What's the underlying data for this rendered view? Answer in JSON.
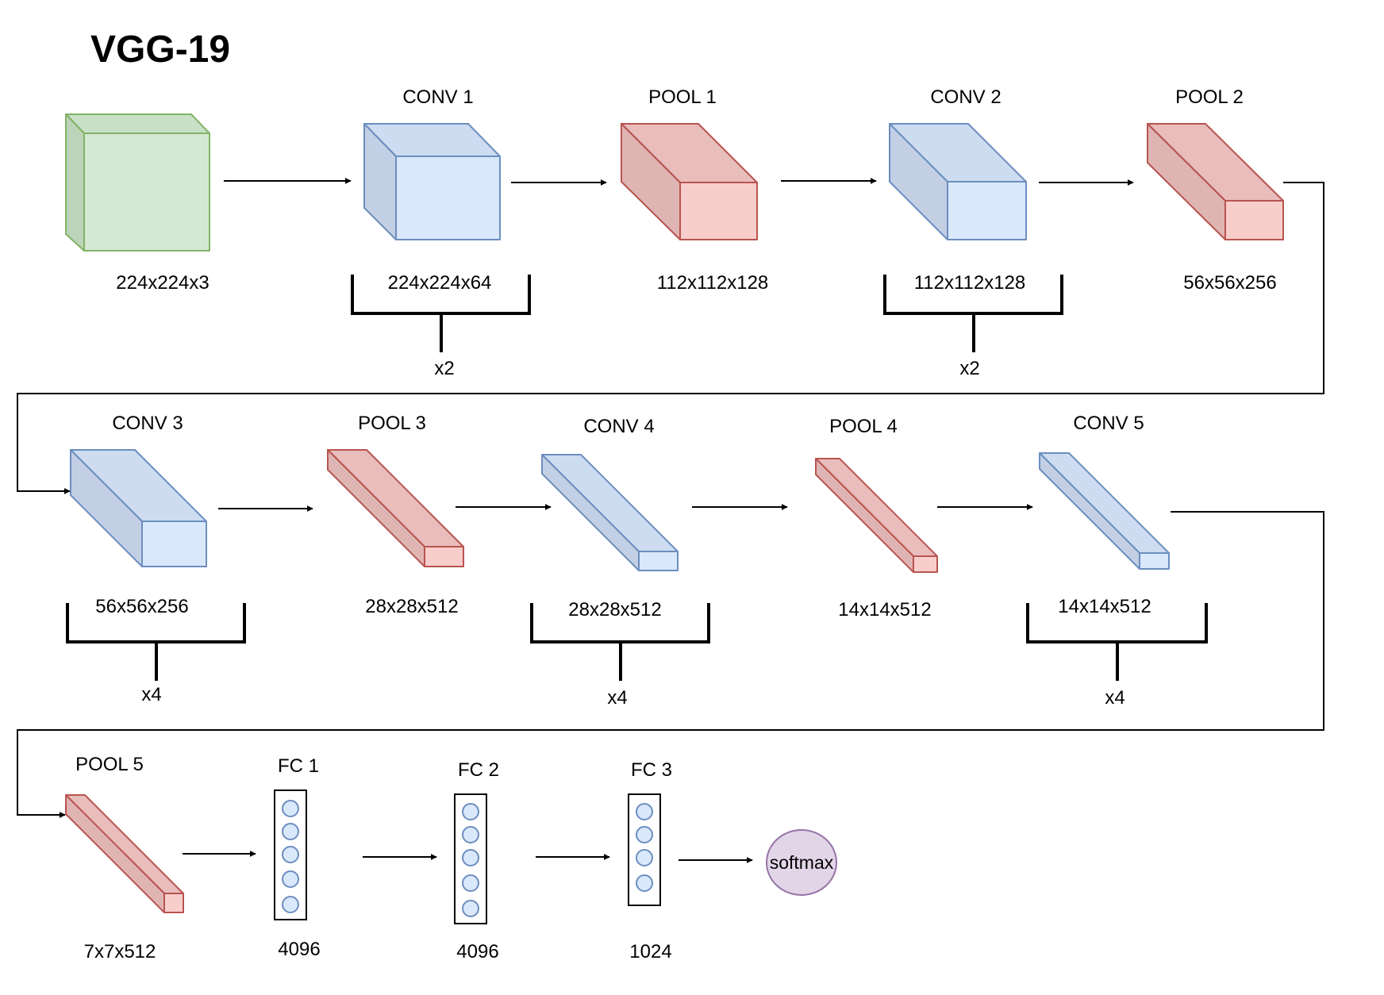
{
  "title": "VGG-19",
  "colors": {
    "input": {
      "front": "#d5e8d4",
      "top": "#c8e0c6",
      "side": "#bcd4b9",
      "stroke": "#82b366"
    },
    "conv": {
      "front": "#dae8fc",
      "top": "#cddcf0",
      "side": "#c2cfe4",
      "stroke": "#6c8ebf"
    },
    "pool": {
      "front": "#f8cecc",
      "top": "#e9bdbc",
      "side": "#dfb5b4",
      "stroke": "#b85450"
    },
    "softmax": {
      "fill": "#e1d5e7",
      "stroke": "#9673a6"
    }
  },
  "layers": {
    "input": {
      "dims": "224x224x3"
    },
    "conv1": {
      "label": "CONV 1",
      "dims": "224x224x64",
      "repeat": "x2"
    },
    "pool1": {
      "label": "POOL 1",
      "dims": "112x112x128"
    },
    "conv2": {
      "label": "CONV 2",
      "dims": "112x112x128",
      "repeat": "x2"
    },
    "pool2": {
      "label": "POOL 2",
      "dims": "56x56x256"
    },
    "conv3": {
      "label": "CONV 3",
      "dims": "56x56x256",
      "repeat": "x4"
    },
    "pool3": {
      "label": "POOL 3",
      "dims": "28x28x512"
    },
    "conv4": {
      "label": "CONV 4",
      "dims": "28x28x512",
      "repeat": "x4"
    },
    "pool4": {
      "label": "POOL 4",
      "dims": "14x14x512"
    },
    "conv5": {
      "label": "CONV 5",
      "dims": "14x14x512",
      "repeat": "x4"
    },
    "pool5": {
      "label": "POOL 5",
      "dims": "7x7x512"
    },
    "fc1": {
      "label": "FC 1",
      "units": "4096"
    },
    "fc2": {
      "label": "FC 2",
      "units": "4096"
    },
    "fc3": {
      "label": "FC 3",
      "units": "1024"
    },
    "softmax": {
      "label": "softmax"
    }
  }
}
